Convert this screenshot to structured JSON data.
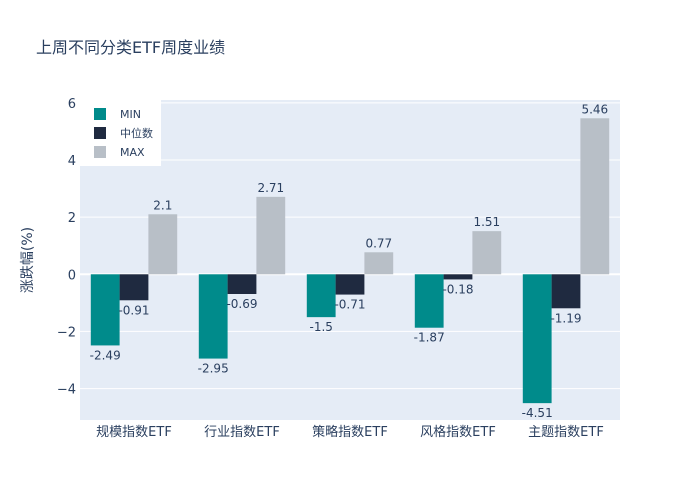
{
  "chart_data": {
    "type": "bar",
    "title": "上周不同分类ETF周度业绩",
    "xlabel": "",
    "ylabel": "涨跌幅(%)",
    "ylim": [
      -5.1,
      6.1
    ],
    "yticks": [
      -4,
      -2,
      0,
      2,
      4,
      6
    ],
    "ytick_labels": [
      "−4",
      "−2",
      "0",
      "2",
      "4",
      "6"
    ],
    "grid": true,
    "legend_position": "top-left",
    "categories": [
      "规模指数ETF",
      "行业指数ETF",
      "策略指数ETF",
      "风格指数ETF",
      "主题指数ETF"
    ],
    "series": [
      {
        "name": "MIN",
        "color": "#008b8b",
        "values": [
          -2.49,
          -2.95,
          -1.5,
          -1.87,
          -4.51
        ],
        "labels": [
          "-2.49",
          "-2.95",
          "-1.5",
          "-1.87",
          "-4.51"
        ]
      },
      {
        "name": "中位数",
        "color": "#1f2a40",
        "values": [
          -0.91,
          -0.69,
          -0.71,
          -0.18,
          -1.19
        ],
        "labels": [
          "-0.91",
          "-0.69",
          "-0.71",
          "-0.18",
          "-1.19"
        ]
      },
      {
        "name": "MAX",
        "color": "#b8bfc7",
        "values": [
          2.1,
          2.71,
          0.77,
          1.51,
          5.46
        ],
        "labels": [
          "2.1",
          "2.71",
          "0.77",
          "1.51",
          "5.46"
        ]
      }
    ],
    "colors": {
      "plot_bg": "#e5ecf6",
      "grid": "#ffffff",
      "text": "#2a3f5f"
    }
  }
}
